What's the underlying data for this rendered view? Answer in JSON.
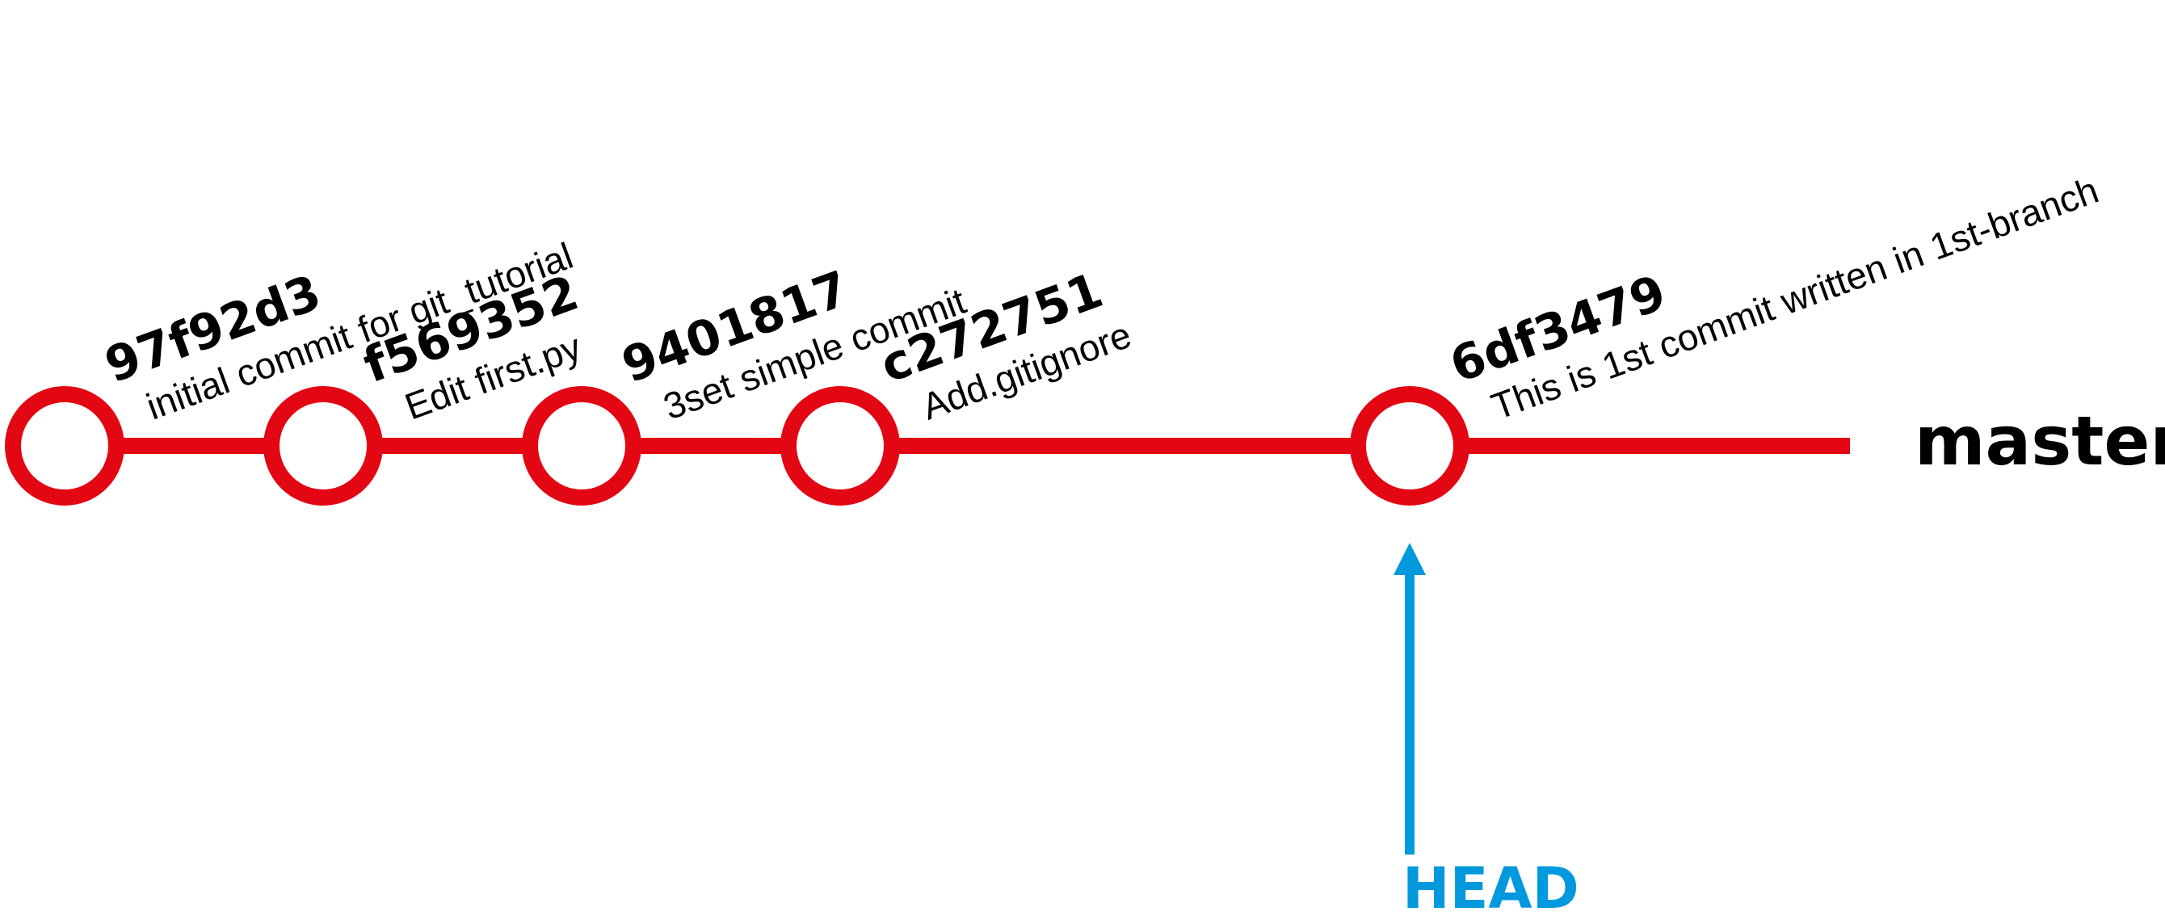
{
  "colors": {
    "branch_line": "#e30613",
    "head_arrow": "#0099dd",
    "text": "#000000",
    "background": "#ffffff"
  },
  "branch": {
    "name": "master"
  },
  "head": {
    "label": "HEAD",
    "points_to": "6df3479"
  },
  "commits": [
    {
      "hash": "97f92d3",
      "message": "initial commit for git_tutorial"
    },
    {
      "hash": "f569352",
      "message": "Edit first.py"
    },
    {
      "hash": "9401817",
      "message": "3set simple commit"
    },
    {
      "hash": "c272751",
      "message": "Add.gitignore"
    },
    {
      "hash": "6df3479",
      "message": "This is 1st commit written in 1st-branch"
    }
  ]
}
